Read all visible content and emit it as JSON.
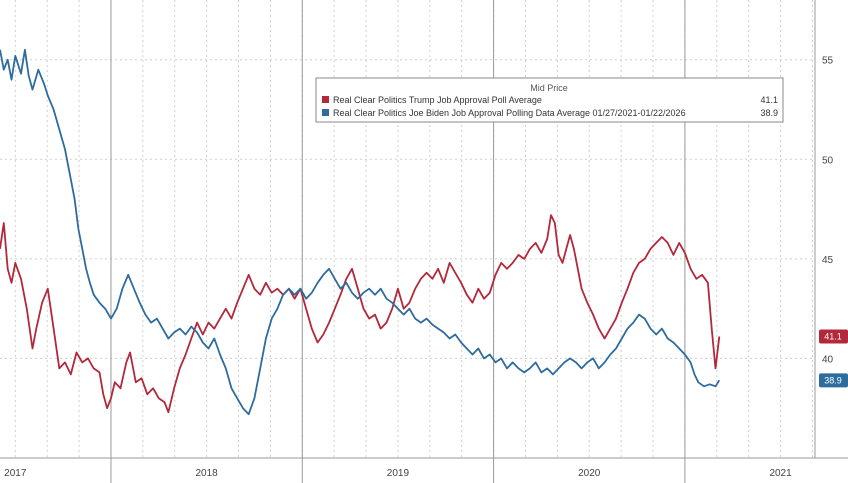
{
  "chart_data": {
    "type": "line",
    "y_axis_side": "right",
    "ylim": [
      35,
      58
    ],
    "y_ticks": [
      40,
      45,
      50,
      55
    ],
    "x_range": [
      2016.92,
      2021.18
    ],
    "x_ticks": [
      {
        "label": "2017",
        "x": 2017.0
      },
      {
        "label": "2018",
        "x": 2018.0
      },
      {
        "label": "2019",
        "x": 2019.0
      },
      {
        "label": "2020",
        "x": 2020.0
      },
      {
        "label": "2021",
        "x": 2021.0
      }
    ],
    "x_year_dividers": [
      2017.5,
      2018.5,
      2019.5,
      2020.5
    ],
    "grid": true,
    "legend": {
      "title": "Mid Price",
      "placement": "top-right"
    },
    "series": [
      {
        "name": "Real Clear Politics Trump Job Approval Poll Average",
        "color": "#b3283a",
        "last_value": "41.1",
        "points": [
          [
            2016.92,
            45.5
          ],
          [
            2016.94,
            46.8
          ],
          [
            2016.96,
            44.5
          ],
          [
            2016.98,
            43.8
          ],
          [
            2017.0,
            44.8
          ],
          [
            2017.03,
            44.0
          ],
          [
            2017.06,
            42.5
          ],
          [
            2017.09,
            40.5
          ],
          [
            2017.11,
            41.5
          ],
          [
            2017.14,
            42.8
          ],
          [
            2017.17,
            43.5
          ],
          [
            2017.2,
            41.5
          ],
          [
            2017.23,
            39.5
          ],
          [
            2017.26,
            39.8
          ],
          [
            2017.29,
            39.2
          ],
          [
            2017.32,
            40.3
          ],
          [
            2017.35,
            39.8
          ],
          [
            2017.38,
            40.0
          ],
          [
            2017.41,
            39.5
          ],
          [
            2017.44,
            39.3
          ],
          [
            2017.46,
            38.2
          ],
          [
            2017.48,
            37.5
          ],
          [
            2017.5,
            38.0
          ],
          [
            2017.52,
            38.8
          ],
          [
            2017.55,
            38.5
          ],
          [
            2017.58,
            39.8
          ],
          [
            2017.6,
            40.3
          ],
          [
            2017.63,
            38.8
          ],
          [
            2017.66,
            39.0
          ],
          [
            2017.69,
            38.2
          ],
          [
            2017.72,
            38.5
          ],
          [
            2017.75,
            38.0
          ],
          [
            2017.78,
            37.8
          ],
          [
            2017.8,
            37.3
          ],
          [
            2017.83,
            38.5
          ],
          [
            2017.86,
            39.5
          ],
          [
            2017.89,
            40.2
          ],
          [
            2017.92,
            41.0
          ],
          [
            2017.95,
            41.8
          ],
          [
            2017.98,
            41.2
          ],
          [
            2018.01,
            41.8
          ],
          [
            2018.04,
            41.5
          ],
          [
            2018.07,
            42.0
          ],
          [
            2018.1,
            42.5
          ],
          [
            2018.13,
            42.0
          ],
          [
            2018.16,
            42.8
          ],
          [
            2018.19,
            43.5
          ],
          [
            2018.22,
            44.2
          ],
          [
            2018.25,
            43.5
          ],
          [
            2018.28,
            43.2
          ],
          [
            2018.31,
            43.8
          ],
          [
            2018.34,
            43.3
          ],
          [
            2018.37,
            43.5
          ],
          [
            2018.4,
            43.2
          ],
          [
            2018.43,
            43.5
          ],
          [
            2018.46,
            43.0
          ],
          [
            2018.49,
            43.5
          ],
          [
            2018.52,
            42.5
          ],
          [
            2018.55,
            41.5
          ],
          [
            2018.58,
            40.8
          ],
          [
            2018.61,
            41.2
          ],
          [
            2018.64,
            41.8
          ],
          [
            2018.67,
            42.5
          ],
          [
            2018.7,
            43.2
          ],
          [
            2018.73,
            44.0
          ],
          [
            2018.76,
            44.5
          ],
          [
            2018.79,
            43.5
          ],
          [
            2018.82,
            42.5
          ],
          [
            2018.85,
            42.0
          ],
          [
            2018.88,
            42.2
          ],
          [
            2018.91,
            41.5
          ],
          [
            2018.94,
            41.8
          ],
          [
            2018.97,
            42.5
          ],
          [
            2019.0,
            43.5
          ],
          [
            2019.03,
            42.5
          ],
          [
            2019.06,
            42.8
          ],
          [
            2019.09,
            43.5
          ],
          [
            2019.12,
            44.0
          ],
          [
            2019.15,
            44.3
          ],
          [
            2019.18,
            44.0
          ],
          [
            2019.21,
            44.5
          ],
          [
            2019.24,
            43.8
          ],
          [
            2019.27,
            44.8
          ],
          [
            2019.3,
            44.3
          ],
          [
            2019.33,
            43.8
          ],
          [
            2019.36,
            43.2
          ],
          [
            2019.39,
            42.8
          ],
          [
            2019.42,
            43.5
          ],
          [
            2019.45,
            43.0
          ],
          [
            2019.48,
            43.3
          ],
          [
            2019.51,
            44.2
          ],
          [
            2019.54,
            44.8
          ],
          [
            2019.57,
            44.5
          ],
          [
            2019.6,
            44.8
          ],
          [
            2019.63,
            45.2
          ],
          [
            2019.66,
            45.0
          ],
          [
            2019.69,
            45.5
          ],
          [
            2019.72,
            45.8
          ],
          [
            2019.75,
            45.3
          ],
          [
            2019.78,
            46.0
          ],
          [
            2019.8,
            47.2
          ],
          [
            2019.82,
            46.8
          ],
          [
            2019.84,
            45.2
          ],
          [
            2019.86,
            44.8
          ],
          [
            2019.88,
            45.5
          ],
          [
            2019.9,
            46.2
          ],
          [
            2019.92,
            45.5
          ],
          [
            2019.94,
            44.5
          ],
          [
            2019.96,
            43.5
          ],
          [
            2019.99,
            42.8
          ],
          [
            2020.02,
            42.2
          ],
          [
            2020.05,
            41.5
          ],
          [
            2020.08,
            41.0
          ],
          [
            2020.11,
            41.5
          ],
          [
            2020.14,
            42.0
          ],
          [
            2020.17,
            42.8
          ],
          [
            2020.2,
            43.5
          ],
          [
            2020.23,
            44.3
          ],
          [
            2020.26,
            44.8
          ],
          [
            2020.29,
            45.0
          ],
          [
            2020.32,
            45.5
          ],
          [
            2020.35,
            45.8
          ],
          [
            2020.38,
            46.1
          ],
          [
            2020.41,
            45.8
          ],
          [
            2020.44,
            45.2
          ],
          [
            2020.47,
            45.8
          ],
          [
            2020.5,
            45.3
          ],
          [
            2020.53,
            44.5
          ],
          [
            2020.56,
            44.0
          ],
          [
            2020.59,
            44.2
          ],
          [
            2020.62,
            43.8
          ],
          [
            2020.64,
            41.5
          ],
          [
            2020.66,
            39.5
          ],
          [
            2020.68,
            41.1
          ]
        ]
      },
      {
        "name": "Real Clear Politics Joe Biden Job Approval Polling Data Average 01/27/2021-01/22/2026",
        "color": "#2e6c9e",
        "last_value": "38.9",
        "points": [
          [
            2016.92,
            55.5
          ],
          [
            2016.94,
            54.5
          ],
          [
            2016.96,
            55.0
          ],
          [
            2016.98,
            54.0
          ],
          [
            2017.0,
            55.2
          ],
          [
            2017.03,
            54.3
          ],
          [
            2017.05,
            55.5
          ],
          [
            2017.07,
            54.2
          ],
          [
            2017.09,
            53.5
          ],
          [
            2017.12,
            54.5
          ],
          [
            2017.15,
            53.8
          ],
          [
            2017.17,
            53.2
          ],
          [
            2017.2,
            52.5
          ],
          [
            2017.23,
            51.5
          ],
          [
            2017.26,
            50.5
          ],
          [
            2017.29,
            49.0
          ],
          [
            2017.31,
            48.0
          ],
          [
            2017.33,
            46.5
          ],
          [
            2017.35,
            45.5
          ],
          [
            2017.37,
            44.5
          ],
          [
            2017.39,
            43.8
          ],
          [
            2017.41,
            43.2
          ],
          [
            2017.44,
            42.8
          ],
          [
            2017.47,
            42.5
          ],
          [
            2017.5,
            42.0
          ],
          [
            2017.53,
            42.5
          ],
          [
            2017.56,
            43.5
          ],
          [
            2017.59,
            44.2
          ],
          [
            2017.62,
            43.5
          ],
          [
            2017.65,
            42.8
          ],
          [
            2017.68,
            42.2
          ],
          [
            2017.71,
            41.8
          ],
          [
            2017.74,
            42.0
          ],
          [
            2017.77,
            41.5
          ],
          [
            2017.8,
            41.0
          ],
          [
            2017.83,
            41.3
          ],
          [
            2017.86,
            41.5
          ],
          [
            2017.89,
            41.2
          ],
          [
            2017.92,
            41.6
          ],
          [
            2017.95,
            41.3
          ],
          [
            2017.98,
            40.8
          ],
          [
            2018.01,
            40.5
          ],
          [
            2018.04,
            41.0
          ],
          [
            2018.07,
            40.2
          ],
          [
            2018.1,
            39.5
          ],
          [
            2018.13,
            38.5
          ],
          [
            2018.16,
            38.0
          ],
          [
            2018.19,
            37.5
          ],
          [
            2018.22,
            37.2
          ],
          [
            2018.25,
            38.0
          ],
          [
            2018.28,
            39.5
          ],
          [
            2018.31,
            41.0
          ],
          [
            2018.34,
            42.0
          ],
          [
            2018.37,
            42.5
          ],
          [
            2018.4,
            43.2
          ],
          [
            2018.43,
            43.5
          ],
          [
            2018.46,
            43.2
          ],
          [
            2018.49,
            43.5
          ],
          [
            2018.52,
            43.0
          ],
          [
            2018.55,
            43.3
          ],
          [
            2018.58,
            43.8
          ],
          [
            2018.61,
            44.2
          ],
          [
            2018.64,
            44.5
          ],
          [
            2018.67,
            44.0
          ],
          [
            2018.7,
            43.5
          ],
          [
            2018.73,
            43.8
          ],
          [
            2018.76,
            43.3
          ],
          [
            2018.79,
            43.0
          ],
          [
            2018.82,
            43.3
          ],
          [
            2018.85,
            43.5
          ],
          [
            2018.88,
            43.2
          ],
          [
            2018.91,
            43.5
          ],
          [
            2018.94,
            43.0
          ],
          [
            2018.97,
            42.8
          ],
          [
            2019.0,
            42.5
          ],
          [
            2019.03,
            42.2
          ],
          [
            2019.06,
            42.5
          ],
          [
            2019.09,
            42.0
          ],
          [
            2019.12,
            41.8
          ],
          [
            2019.15,
            42.0
          ],
          [
            2019.18,
            41.7
          ],
          [
            2019.21,
            41.5
          ],
          [
            2019.24,
            41.3
          ],
          [
            2019.27,
            41.0
          ],
          [
            2019.3,
            41.2
          ],
          [
            2019.33,
            40.8
          ],
          [
            2019.36,
            40.5
          ],
          [
            2019.39,
            40.2
          ],
          [
            2019.42,
            40.5
          ],
          [
            2019.45,
            40.0
          ],
          [
            2019.48,
            40.2
          ],
          [
            2019.51,
            39.8
          ],
          [
            2019.54,
            40.0
          ],
          [
            2019.57,
            39.5
          ],
          [
            2019.6,
            39.8
          ],
          [
            2019.63,
            39.5
          ],
          [
            2019.66,
            39.3
          ],
          [
            2019.69,
            39.5
          ],
          [
            2019.72,
            39.8
          ],
          [
            2019.75,
            39.3
          ],
          [
            2019.78,
            39.5
          ],
          [
            2019.81,
            39.2
          ],
          [
            2019.84,
            39.5
          ],
          [
            2019.87,
            39.8
          ],
          [
            2019.9,
            40.0
          ],
          [
            2019.93,
            39.8
          ],
          [
            2019.96,
            39.5
          ],
          [
            2019.99,
            39.8
          ],
          [
            2020.02,
            40.0
          ],
          [
            2020.05,
            39.5
          ],
          [
            2020.08,
            39.8
          ],
          [
            2020.11,
            40.2
          ],
          [
            2020.14,
            40.5
          ],
          [
            2020.17,
            41.0
          ],
          [
            2020.2,
            41.5
          ],
          [
            2020.23,
            41.8
          ],
          [
            2020.26,
            42.2
          ],
          [
            2020.29,
            42.0
          ],
          [
            2020.32,
            41.5
          ],
          [
            2020.35,
            41.2
          ],
          [
            2020.38,
            41.5
          ],
          [
            2020.41,
            41.0
          ],
          [
            2020.44,
            40.8
          ],
          [
            2020.47,
            40.5
          ],
          [
            2020.5,
            40.2
          ],
          [
            2020.53,
            39.8
          ],
          [
            2020.55,
            39.2
          ],
          [
            2020.57,
            38.8
          ],
          [
            2020.6,
            38.6
          ],
          [
            2020.63,
            38.7
          ],
          [
            2020.66,
            38.6
          ],
          [
            2020.68,
            38.9
          ]
        ]
      }
    ]
  }
}
